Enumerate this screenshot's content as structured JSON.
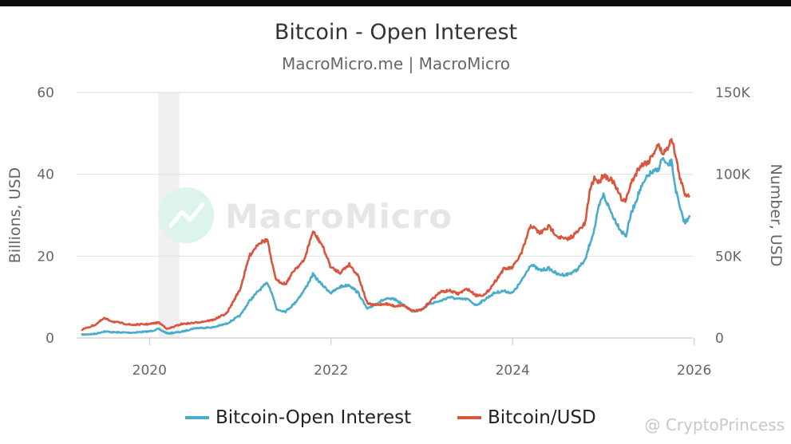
{
  "chart_data": {
    "type": "line",
    "title": "Bitcoin - Open Interest",
    "subtitle": "MacroMicro.me | MacroMicro",
    "watermark": "MacroMicro",
    "corner_watermark": "@ CryptoPrincess",
    "y_left": {
      "label": "Billions, USD",
      "range": [
        0,
        60
      ],
      "ticks": [
        0,
        20,
        40,
        60
      ],
      "tick_labels": [
        "0",
        "20",
        "40",
        "60"
      ]
    },
    "y_right": {
      "label": "Number, USD",
      "range": [
        0,
        150000
      ],
      "ticks": [
        0,
        50000,
        100000,
        150000
      ],
      "tick_labels": [
        "0",
        "50K",
        "100K",
        "150K"
      ]
    },
    "x_range": [
      2019.25,
      2025.95
    ],
    "x_ticks": [
      2020,
      2022,
      2024,
      2026
    ],
    "x_tick_labels": [
      "2020",
      "2022",
      "2024",
      "2026"
    ],
    "shaded_region": [
      2020.1,
      2020.33
    ],
    "grid": true,
    "legend_position": "bottom",
    "series": [
      {
        "name": "Bitcoin-Open Interest",
        "axis": "left",
        "color": "#4aaccb",
        "points": [
          [
            2019.25,
            0.8
          ],
          [
            2019.4,
            1.0
          ],
          [
            2019.5,
            1.6
          ],
          [
            2019.6,
            1.4
          ],
          [
            2019.8,
            1.3
          ],
          [
            2020.0,
            1.6
          ],
          [
            2020.1,
            2.2
          ],
          [
            2020.2,
            1.1
          ],
          [
            2020.35,
            1.5
          ],
          [
            2020.5,
            2.4
          ],
          [
            2020.7,
            2.6
          ],
          [
            2020.85,
            3.5
          ],
          [
            2021.0,
            5.5
          ],
          [
            2021.1,
            9.0
          ],
          [
            2021.2,
            11.5
          ],
          [
            2021.3,
            13.5
          ],
          [
            2021.35,
            11.0
          ],
          [
            2021.4,
            7.0
          ],
          [
            2021.5,
            6.5
          ],
          [
            2021.6,
            8.5
          ],
          [
            2021.7,
            11.5
          ],
          [
            2021.8,
            15.5
          ],
          [
            2021.9,
            13.0
          ],
          [
            2022.0,
            11.0
          ],
          [
            2022.1,
            12.5
          ],
          [
            2022.2,
            13.0
          ],
          [
            2022.3,
            11.0
          ],
          [
            2022.4,
            7.0
          ],
          [
            2022.5,
            8.5
          ],
          [
            2022.6,
            9.5
          ],
          [
            2022.7,
            9.5
          ],
          [
            2022.8,
            8.0
          ],
          [
            2022.9,
            6.5
          ],
          [
            2023.0,
            7.0
          ],
          [
            2023.1,
            8.5
          ],
          [
            2023.2,
            9.0
          ],
          [
            2023.3,
            10.0
          ],
          [
            2023.4,
            9.5
          ],
          [
            2023.5,
            9.5
          ],
          [
            2023.6,
            8.0
          ],
          [
            2023.7,
            9.5
          ],
          [
            2023.8,
            11.0
          ],
          [
            2023.9,
            11.5
          ],
          [
            2024.0,
            11.0
          ],
          [
            2024.1,
            14.0
          ],
          [
            2024.2,
            18.0
          ],
          [
            2024.3,
            16.5
          ],
          [
            2024.4,
            17.0
          ],
          [
            2024.5,
            15.5
          ],
          [
            2024.6,
            15.5
          ],
          [
            2024.7,
            16.5
          ],
          [
            2024.8,
            19.0
          ],
          [
            2024.85,
            23.0
          ],
          [
            2024.9,
            26.5
          ],
          [
            2024.95,
            32.0
          ],
          [
            2025.0,
            35.0
          ],
          [
            2025.1,
            30.0
          ],
          [
            2025.2,
            26.0
          ],
          [
            2025.25,
            25.0
          ],
          [
            2025.3,
            30.0
          ],
          [
            2025.4,
            36.0
          ],
          [
            2025.5,
            40.0
          ],
          [
            2025.6,
            41.0
          ],
          [
            2025.65,
            44.0
          ],
          [
            2025.7,
            42.0
          ],
          [
            2025.75,
            43.0
          ],
          [
            2025.8,
            36.0
          ],
          [
            2025.85,
            31.0
          ],
          [
            2025.9,
            28.0
          ],
          [
            2025.95,
            30.0
          ]
        ]
      },
      {
        "name": "Bitcoin/USD",
        "axis": "right",
        "color": "#d9553c",
        "points": [
          [
            2019.25,
            5000
          ],
          [
            2019.4,
            8000
          ],
          [
            2019.5,
            12000
          ],
          [
            2019.6,
            10000
          ],
          [
            2019.8,
            8000
          ],
          [
            2020.0,
            8500
          ],
          [
            2020.1,
            9500
          ],
          [
            2020.2,
            5500
          ],
          [
            2020.35,
            8500
          ],
          [
            2020.5,
            9300
          ],
          [
            2020.7,
            11000
          ],
          [
            2020.85,
            15000
          ],
          [
            2021.0,
            30000
          ],
          [
            2021.1,
            50000
          ],
          [
            2021.2,
            58000
          ],
          [
            2021.3,
            60000
          ],
          [
            2021.35,
            45000
          ],
          [
            2021.4,
            35000
          ],
          [
            2021.5,
            33000
          ],
          [
            2021.6,
            42000
          ],
          [
            2021.7,
            47000
          ],
          [
            2021.8,
            65000
          ],
          [
            2021.9,
            57000
          ],
          [
            2022.0,
            43000
          ],
          [
            2022.1,
            40000
          ],
          [
            2022.2,
            45000
          ],
          [
            2022.3,
            38000
          ],
          [
            2022.4,
            21000
          ],
          [
            2022.5,
            20000
          ],
          [
            2022.6,
            21000
          ],
          [
            2022.7,
            19500
          ],
          [
            2022.8,
            20000
          ],
          [
            2022.9,
            16500
          ],
          [
            2023.0,
            17000
          ],
          [
            2023.1,
            23000
          ],
          [
            2023.2,
            28000
          ],
          [
            2023.3,
            29000
          ],
          [
            2023.4,
            27000
          ],
          [
            2023.5,
            30000
          ],
          [
            2023.6,
            26000
          ],
          [
            2023.7,
            26500
          ],
          [
            2023.8,
            34000
          ],
          [
            2023.9,
            42000
          ],
          [
            2024.0,
            43000
          ],
          [
            2024.1,
            52000
          ],
          [
            2024.2,
            69000
          ],
          [
            2024.3,
            64000
          ],
          [
            2024.4,
            68000
          ],
          [
            2024.5,
            62000
          ],
          [
            2024.6,
            60000
          ],
          [
            2024.7,
            64000
          ],
          [
            2024.8,
            70000
          ],
          [
            2024.85,
            90000
          ],
          [
            2024.9,
            98000
          ],
          [
            2024.95,
            95000
          ],
          [
            2025.0,
            100000
          ],
          [
            2025.1,
            96000
          ],
          [
            2025.2,
            85000
          ],
          [
            2025.25,
            84000
          ],
          [
            2025.3,
            94000
          ],
          [
            2025.4,
            105000
          ],
          [
            2025.5,
            108000
          ],
          [
            2025.6,
            118000
          ],
          [
            2025.65,
            113000
          ],
          [
            2025.7,
            115000
          ],
          [
            2025.75,
            123000
          ],
          [
            2025.8,
            110000
          ],
          [
            2025.85,
            96000
          ],
          [
            2025.9,
            88000
          ],
          [
            2025.95,
            87000
          ]
        ]
      }
    ]
  }
}
